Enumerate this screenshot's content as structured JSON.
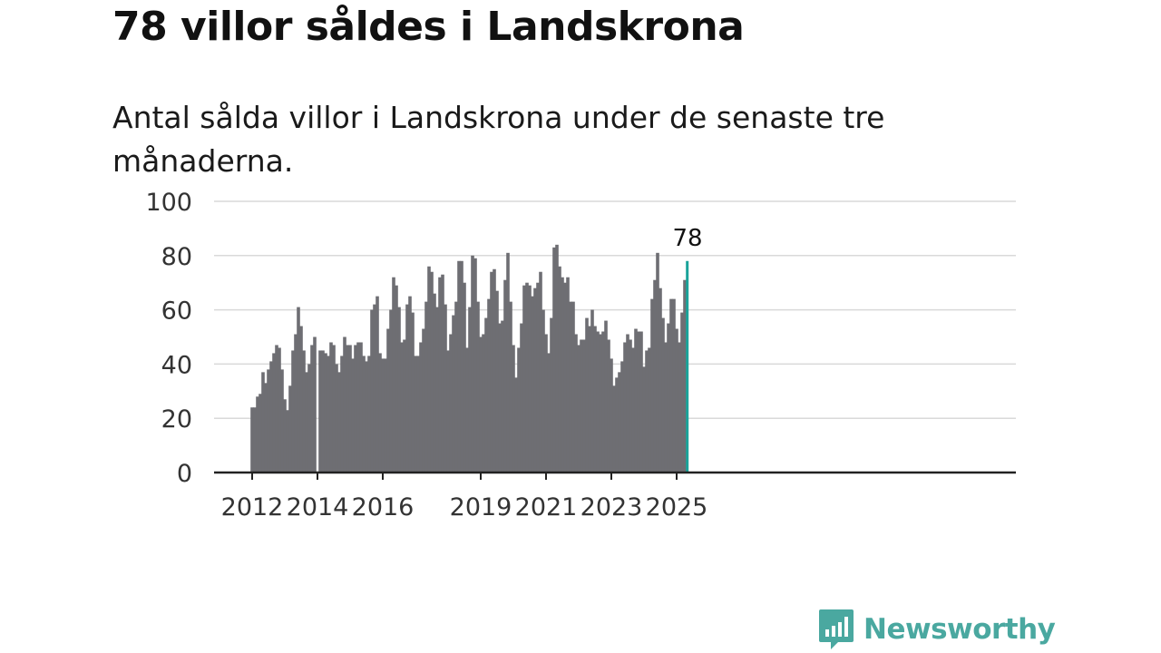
{
  "header": {
    "title": "78 villor såldes i Landskrona",
    "subtitle": "Antal sålda villor i Landskrona under de senaste tre månaderna."
  },
  "brand": {
    "name": "Newsworthy",
    "logo_icon": "bar-chart-speech-bubble-icon",
    "color": "#4aa8a0"
  },
  "chart_data": {
    "type": "bar",
    "title": "78 villor såldes i Landskrona",
    "subtitle": "Antal sålda villor i Landskrona under de senaste tre månaderna.",
    "xlabel": "",
    "ylabel": "",
    "ylim": [
      0,
      100
    ],
    "yticks": [
      "0",
      "20",
      "40",
      "60",
      "80",
      "100"
    ],
    "grid": true,
    "start_month": "2012-01",
    "xtick_labels": [
      {
        "label": "2012",
        "month": "2012-01"
      },
      {
        "label": "2014",
        "month": "2014-01"
      },
      {
        "label": "2016",
        "month": "2016-01"
      },
      {
        "label": "2019",
        "month": "2019-01"
      },
      {
        "label": "2021",
        "month": "2021-01"
      },
      {
        "label": "2023",
        "month": "2023-01"
      },
      {
        "label": "2025",
        "month": "2025-01"
      }
    ],
    "bar_color": "#6e6e73",
    "highlight_color": "#1aa39a",
    "highlight_label": "78",
    "values": [
      24,
      24,
      28,
      29,
      37,
      33,
      38,
      41,
      44,
      47,
      46,
      38,
      27,
      23,
      32,
      45,
      51,
      61,
      54,
      45,
      37,
      40,
      47,
      50,
      0,
      45,
      45,
      44,
      43,
      48,
      47,
      40,
      37,
      43,
      50,
      47,
      47,
      42,
      47,
      48,
      48,
      43,
      41,
      43,
      60,
      62,
      65,
      44,
      42,
      42,
      53,
      60,
      72,
      69,
      61,
      48,
      49,
      62,
      65,
      59,
      43,
      43,
      48,
      53,
      63,
      76,
      74,
      66,
      61,
      72,
      73,
      62,
      45,
      51,
      58,
      63,
      78,
      78,
      70,
      46,
      61,
      80,
      79,
      63,
      50,
      51,
      57,
      64,
      74,
      75,
      67,
      55,
      56,
      71,
      81,
      63,
      47,
      35,
      46,
      55,
      69,
      70,
      69,
      65,
      68,
      70,
      74,
      60,
      51,
      44,
      57,
      83,
      84,
      76,
      72,
      70,
      72,
      63,
      63,
      51,
      47,
      49,
      49,
      57,
      54,
      60,
      54,
      52,
      51,
      52,
      56,
      49,
      42,
      32,
      35,
      37,
      41,
      48,
      51,
      49,
      46,
      53,
      52,
      52,
      39,
      45,
      46,
      64,
      71,
      81,
      68,
      57,
      48,
      55,
      64,
      64,
      53,
      48,
      59,
      71,
      78
    ]
  }
}
